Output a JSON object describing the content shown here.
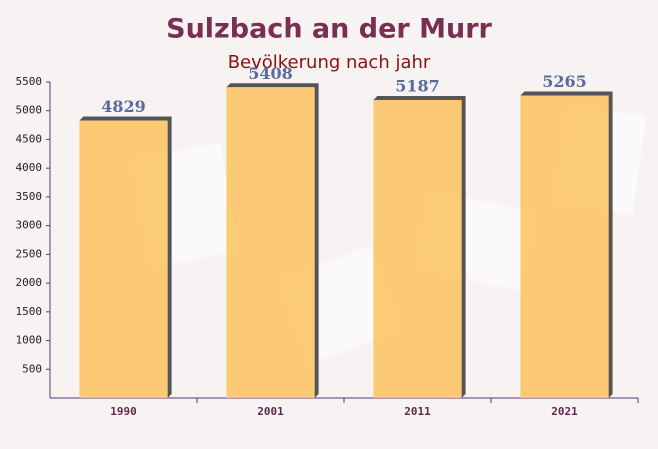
{
  "chart_data": {
    "type": "bar",
    "title": "Sulzbach an der Murr",
    "subtitle": "Bevölkerung nach jahr",
    "categories": [
      "1990",
      "2001",
      "2011",
      "2021"
    ],
    "values": [
      4829,
      5408,
      5187,
      5265
    ],
    "color": "#fcc76a",
    "ylim": [
      0,
      5500
    ],
    "yticks": [
      500,
      1000,
      1500,
      2000,
      2500,
      3000,
      3500,
      4000,
      4500,
      5000,
      5500
    ],
    "grid": false
  }
}
